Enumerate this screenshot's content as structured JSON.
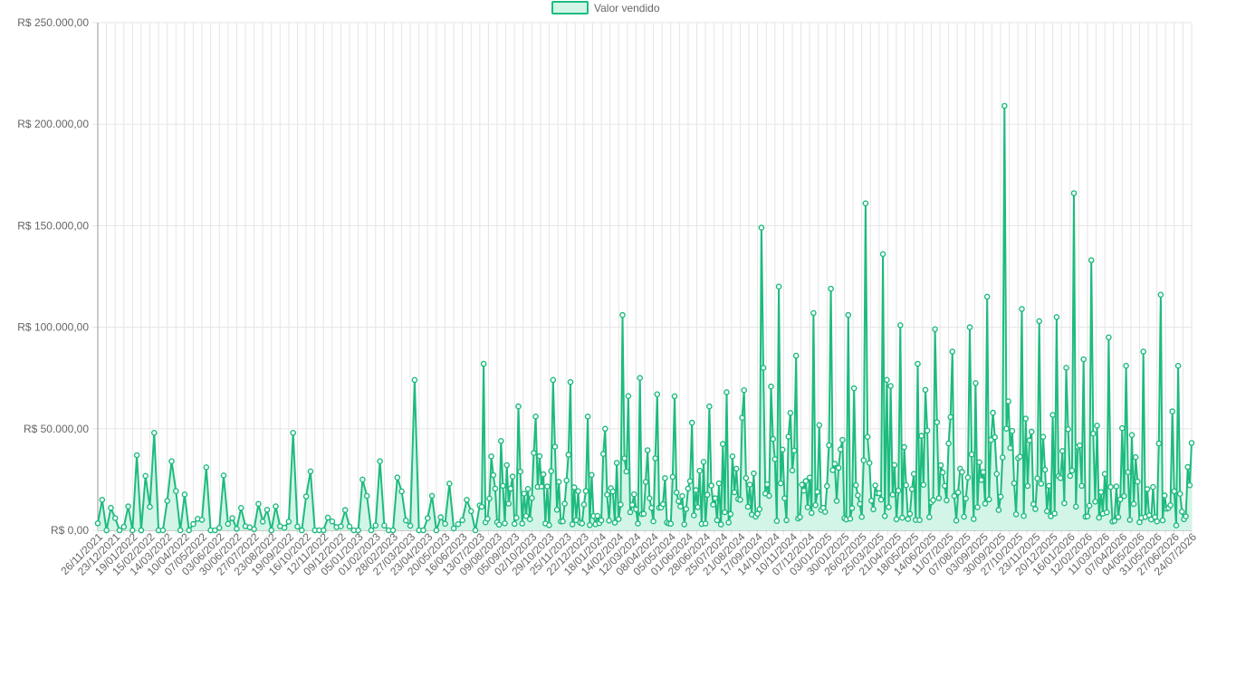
{
  "chart_data": {
    "type": "line",
    "legend": {
      "label": "Valor vendido",
      "position": "top"
    },
    "colors": {
      "line": "#1ebb7e",
      "fill": "#d2f5e8",
      "grid": "#e5e5e5",
      "axis": "#999999"
    },
    "y_ticks": [
      "R$ 250.000,00",
      "R$ 200.000,00",
      "R$ 150.000,00",
      "R$ 100.000,00",
      "R$ 50.000,00",
      "R$ 0,00"
    ],
    "ylim": [
      0,
      250000
    ],
    "grid": true,
    "x_labels": [
      "26/11/2021",
      "23/12/2021",
      "19/01/2022",
      "15/02/2022",
      "14/03/2022",
      "10/04/2022",
      "07/05/2022",
      "03/06/2022",
      "30/06/2022",
      "27/07/2022",
      "23/08/2022",
      "19/09/2022",
      "16/10/2022",
      "12/11/2022",
      "09/12/2022",
      "05/01/2023",
      "01/02/2023",
      "28/02/2023",
      "27/03/2023",
      "23/04/2023",
      "20/05/2023",
      "16/06/2023",
      "13/07/2023",
      "09/08/2023",
      "05/09/2023",
      "02/10/2023",
      "29/10/2023",
      "25/11/2023",
      "22/12/2023",
      "18/01/2024",
      "14/02/2024",
      "12/03/2024",
      "08/04/2024",
      "05/05/2024",
      "01/06/2024",
      "28/06/2024",
      "25/07/2024",
      "21/08/2024",
      "17/09/2024",
      "14/10/2024",
      "10/11/2024",
      "07/12/2024",
      "03/01/2025",
      "30/01/2025",
      "26/02/2025",
      "25/03/2025",
      "21/04/2025",
      "18/05/2025",
      "14/06/2025",
      "11/07/2025",
      "07/08/2025",
      "03/09/2025",
      "30/09/2025",
      "27/10/2025",
      "23/11/2025",
      "20/12/2025",
      "16/01/2026",
      "12/02/2026",
      "11/03/2026",
      "07/04/2026",
      "04/05/2026",
      "31/05/2026",
      "27/06/2026",
      "24/07/2026"
    ],
    "peaks": [
      {
        "index": 0,
        "value": 15000
      },
      {
        "index": 2,
        "value": 37000
      },
      {
        "index": 3,
        "value": 48000
      },
      {
        "index": 4,
        "value": 34000
      },
      {
        "index": 6,
        "value": 31000
      },
      {
        "index": 7,
        "value": 27000
      },
      {
        "index": 8,
        "value": 11000
      },
      {
        "index": 9,
        "value": 13000
      },
      {
        "index": 11,
        "value": 48000
      },
      {
        "index": 12,
        "value": 29000
      },
      {
        "index": 14,
        "value": 10000
      },
      {
        "index": 15,
        "value": 25000
      },
      {
        "index": 16,
        "value": 34000
      },
      {
        "index": 17,
        "value": 26000
      },
      {
        "index": 18,
        "value": 74000
      },
      {
        "index": 19,
        "value": 17000
      },
      {
        "index": 20,
        "value": 23000
      },
      {
        "index": 21,
        "value": 15000
      },
      {
        "index": 22,
        "value": 82000
      },
      {
        "index": 23,
        "value": 44000
      },
      {
        "index": 24,
        "value": 61000
      },
      {
        "index": 25,
        "value": 56000
      },
      {
        "index": 26,
        "value": 74000
      },
      {
        "index": 27,
        "value": 73000
      },
      {
        "index": 28,
        "value": 56000
      },
      {
        "index": 29,
        "value": 50000
      },
      {
        "index": 30,
        "value": 106000
      },
      {
        "index": 31,
        "value": 75000
      },
      {
        "index": 32,
        "value": 67000
      },
      {
        "index": 33,
        "value": 66000
      },
      {
        "index": 34,
        "value": 53000
      },
      {
        "index": 35,
        "value": 61000
      },
      {
        "index": 36,
        "value": 68000
      },
      {
        "index": 37,
        "value": 69000
      },
      {
        "index": 38,
        "value": 149000
      },
      {
        "index": 39,
        "value": 120000
      },
      {
        "index": 40,
        "value": 86000
      },
      {
        "index": 41,
        "value": 107000
      },
      {
        "index": 42,
        "value": 119000
      },
      {
        "index": 43,
        "value": 106000
      },
      {
        "index": 44,
        "value": 161000
      },
      {
        "index": 45,
        "value": 136000
      },
      {
        "index": 46,
        "value": 101000
      },
      {
        "index": 47,
        "value": 82000
      },
      {
        "index": 48,
        "value": 99000
      },
      {
        "index": 49,
        "value": 88000
      },
      {
        "index": 50,
        "value": 100000
      },
      {
        "index": 51,
        "value": 115000
      },
      {
        "index": 52,
        "value": 209000
      },
      {
        "index": 53,
        "value": 109000
      },
      {
        "index": 54,
        "value": 103000
      },
      {
        "index": 55,
        "value": 105000
      },
      {
        "index": 56,
        "value": 166000
      },
      {
        "index": 57,
        "value": 133000
      },
      {
        "index": 58,
        "value": 95000
      },
      {
        "index": 59,
        "value": 81000
      },
      {
        "index": 60,
        "value": 88000
      },
      {
        "index": 61,
        "value": 116000
      },
      {
        "index": 62,
        "value": 81000
      },
      {
        "index": 63,
        "value": 43000
      }
    ]
  }
}
